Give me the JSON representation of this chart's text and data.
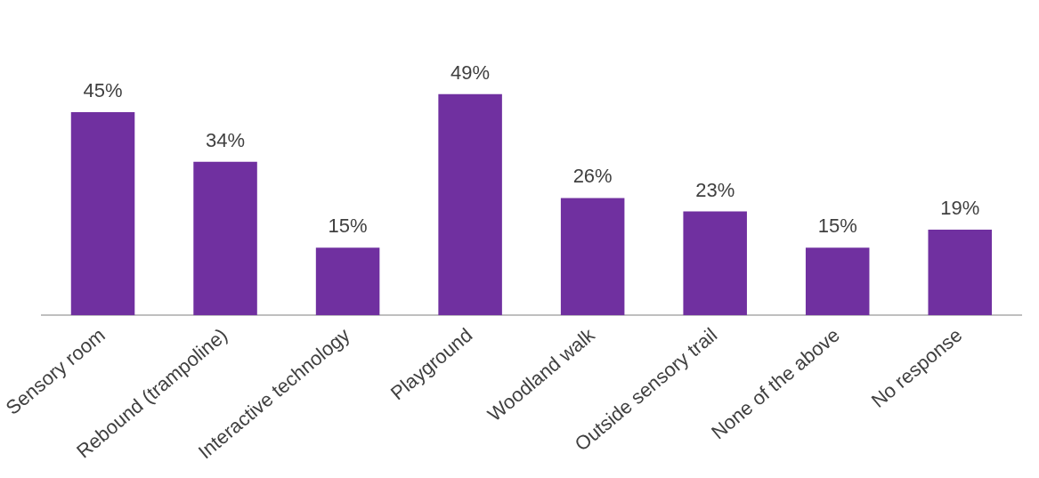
{
  "chart_data": {
    "type": "bar",
    "categories": [
      "Sensory room",
      "Rebound (trampoline)",
      "Interactive technology",
      "Playground",
      "Woodland walk",
      "Outside sensory trail",
      "None of the above",
      "No response"
    ],
    "values": [
      45,
      34,
      15,
      49,
      26,
      23,
      15,
      19
    ],
    "value_labels": [
      "45%",
      "34%",
      "15%",
      "49%",
      "26%",
      "23%",
      "15%",
      "19%"
    ],
    "color": "#7030a0",
    "grid": false,
    "legend": false
  }
}
